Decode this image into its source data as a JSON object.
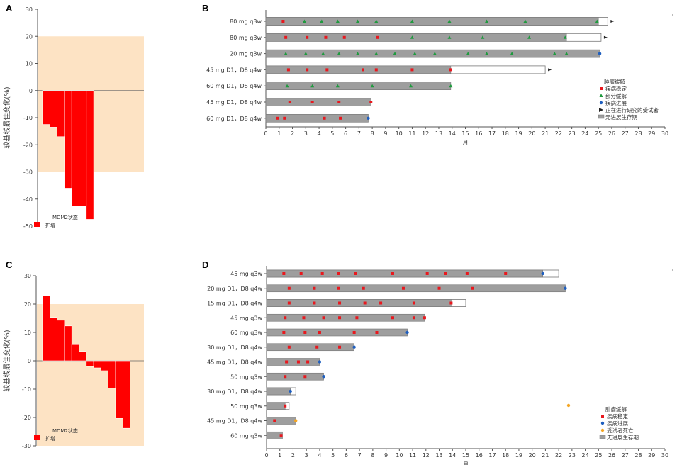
{
  "figure": {
    "panel_labels": [
      "A",
      "B",
      "C",
      "D"
    ]
  },
  "chart_data": [
    {
      "panel": "A",
      "type": "bar",
      "ylabel": "较基线最佳变化(%)",
      "ylim": [
        -50,
        30
      ],
      "yticks": [
        30,
        20,
        10,
        0,
        -10,
        -20,
        -30,
        -40,
        -50
      ],
      "shaded_band": [
        -30,
        20
      ],
      "values": [
        -12.5,
        -13.5,
        -17,
        -36,
        -42.5,
        -42.5,
        -47.5
      ],
      "legend": {
        "title": "MDM2状态",
        "entries": [
          "扩增"
        ]
      },
      "colors": {
        "bar": "#ff0000",
        "band": "#fde3c4"
      }
    },
    {
      "panel": "B",
      "type": "swimmer",
      "xlabel": "月",
      "xlim": [
        0,
        30
      ],
      "xticks": [
        0,
        1,
        2,
        3,
        4,
        5,
        6,
        7,
        8,
        9,
        10,
        11,
        12,
        13,
        14,
        15,
        16,
        17,
        18,
        19,
        20,
        21,
        22,
        23,
        24,
        25,
        26,
        27,
        28,
        29,
        30
      ],
      "rows": [
        {
          "label": "80 mg q3w",
          "pfs": 25,
          "ongoing": 25.7,
          "arrow": true,
          "sd": [
            1.3
          ],
          "pr": [
            2.9,
            4.2,
            5.4,
            6.9,
            8.3,
            11,
            13.8,
            16.6,
            19.5,
            24.9
          ],
          "pd": []
        },
        {
          "label": "80 mg q3w",
          "pfs": 22.6,
          "ongoing": 25.2,
          "arrow": true,
          "sd": [
            1.5,
            3.1,
            4.5,
            5.9,
            8.4
          ],
          "pr": [
            11,
            13.8,
            16.3,
            19.8,
            22.5
          ],
          "pd": []
        },
        {
          "label": "20 mg q3w",
          "pfs": 25.1,
          "ongoing": null,
          "arrow": false,
          "sd": [],
          "pr": [
            1.5,
            3,
            4.3,
            5.5,
            6.9,
            8.3,
            9.7,
            11.2,
            12.7,
            15.2,
            16.6,
            18.5,
            21.7,
            22.6
          ],
          "pd": [
            25.1
          ]
        },
        {
          "label": "45 mg D1，D8 q4w",
          "pfs": 13.9,
          "ongoing": 21,
          "arrow": true,
          "sd": [
            1.7,
            3.1,
            4.6,
            7.3,
            8.3,
            11,
            13.9
          ],
          "pr": [],
          "pd": []
        },
        {
          "label": "60 mg D1，D8 q4w",
          "pfs": 13.9,
          "ongoing": null,
          "arrow": false,
          "sd": [],
          "pr": [
            1.6,
            3.5,
            5.4,
            8,
            10.9,
            13.9
          ],
          "pd": []
        },
        {
          "label": "45 mg D1，D8 q4w",
          "pfs": 7.9,
          "ongoing": null,
          "arrow": false,
          "sd": [
            1.8,
            3.5,
            5.5,
            7.9
          ],
          "pr": [],
          "pd": []
        },
        {
          "label": "60 mg D1，D8 q4w",
          "pfs": 7.7,
          "ongoing": null,
          "arrow": false,
          "sd": [
            0.9,
            1.4,
            4.4,
            5.6
          ],
          "pr": [],
          "pd": [
            7.7
          ]
        }
      ],
      "legend": {
        "title": "肿瘤缓解",
        "entries": [
          "疾病稳定",
          "部分缓解",
          "疾病进展",
          "正在进行研究的受试者",
          "无进展生存期"
        ]
      },
      "colors": {
        "sd": "#e8181e",
        "pr": "#1f9a3e",
        "pd": "#1f5fbf",
        "bar": "#9e9e9e"
      }
    },
    {
      "panel": "C",
      "type": "bar",
      "ylabel": "较基线最佳变化(%)",
      "ylim": [
        -30,
        30
      ],
      "yticks": [
        30,
        20,
        10,
        0,
        -10,
        -20,
        -30
      ],
      "shaded_band": [
        -30,
        20
      ],
      "values": [
        23,
        15.3,
        14.3,
        12.3,
        5.7,
        3.3,
        -2,
        -2.5,
        -3.5,
        -9.7,
        -20.3,
        -23.8
      ],
      "legend": {
        "title": "MDM2状态",
        "entries": [
          "扩增"
        ]
      },
      "colors": {
        "bar": "#ff0000",
        "band": "#fde3c4"
      }
    },
    {
      "panel": "D",
      "type": "swimmer",
      "xlabel": "月",
      "xlim": [
        0,
        30
      ],
      "xticks": [
        0,
        1,
        2,
        3,
        4,
        5,
        6,
        7,
        8,
        9,
        10,
        11,
        12,
        13,
        14,
        15,
        16,
        17,
        18,
        19,
        20,
        21,
        22,
        23,
        24,
        25,
        26,
        27,
        28,
        29,
        30
      ],
      "rows": [
        {
          "label": "45 mg q3w",
          "pfs": 20.8,
          "ongoing": 22,
          "arrow": false,
          "sd": [
            1.3,
            2.6,
            4.2,
            5.4,
            6.7,
            9.5,
            12.1,
            13.5,
            15.1,
            18
          ],
          "pr": [],
          "pd": [
            20.8
          ]
        },
        {
          "label": "20 mg D1，D8 q4w",
          "pfs": 22.5,
          "ongoing": null,
          "arrow": false,
          "sd": [
            1.7,
            3.6,
            5.4,
            7.3,
            10.3,
            13,
            15.5
          ],
          "pr": [],
          "pd": [
            22.5
          ]
        },
        {
          "label": "15 mg D1，D8 q4w",
          "pfs": 13.9,
          "ongoing": 15,
          "arrow": false,
          "sd": [
            1.7,
            3.6,
            5.5,
            7.4,
            8.6,
            11.1,
            13.9
          ],
          "pr": [],
          "pd": []
        },
        {
          "label": "45 mg q3w",
          "pfs": 11.9,
          "ongoing": null,
          "arrow": false,
          "sd": [
            1.4,
            2.8,
            4.3,
            5.5,
            6.8,
            9.5,
            11.1,
            11.9
          ],
          "pr": [],
          "pd": []
        },
        {
          "label": "60 mg q3w",
          "pfs": 10.6,
          "ongoing": null,
          "arrow": false,
          "sd": [
            1.3,
            2.9,
            4,
            6.6,
            8.3
          ],
          "pr": [],
          "pd": [
            10.6
          ]
        },
        {
          "label": "30 mg D1，D8 q4w",
          "pfs": 6.6,
          "ongoing": null,
          "arrow": false,
          "sd": [
            1.7,
            3.8,
            5.5
          ],
          "pr": [],
          "pd": [
            6.6
          ]
        },
        {
          "label": "45 mg D1，D8 q4w",
          "pfs": 4,
          "ongoing": null,
          "arrow": false,
          "sd": [
            1.5,
            2.4,
            3.1
          ],
          "pr": [],
          "pd": [
            4
          ]
        },
        {
          "label": "50 mg q3w",
          "pfs": 4.3,
          "ongoing": null,
          "arrow": false,
          "sd": [
            1.4,
            2.9
          ],
          "pr": [],
          "pd": [
            4.3
          ]
        },
        {
          "label": "30 mg D1，D8 q4w",
          "pfs": 1.8,
          "ongoing": 2.2,
          "arrow": false,
          "sd": [],
          "pr": [],
          "pd": [
            1.8
          ]
        },
        {
          "label": "50 mg q3w",
          "pfs": 1.4,
          "ongoing": 1.7,
          "arrow": false,
          "sd": [
            1.4
          ],
          "pr": [],
          "pd": []
        },
        {
          "label": "45 mg D1，D8 q4w",
          "pfs": 2.2,
          "ongoing": null,
          "arrow": false,
          "sd": [
            0.6
          ],
          "pr": [],
          "pd": [],
          "death": [
            2.2
          ]
        },
        {
          "label": "60 mg q3w",
          "pfs": 1.2,
          "ongoing": null,
          "arrow": false,
          "sd": [
            1.1
          ],
          "pr": [],
          "pd": []
        }
      ],
      "legend": {
        "title": "肿瘤缓解",
        "entries": [
          "疾病稳定",
          "疾病进展",
          "受试者死亡",
          "无进展生存期"
        ]
      },
      "colors": {
        "sd": "#e8181e",
        "pd": "#1f5fbf",
        "death": "#f5a623",
        "bar": "#9e9e9e"
      }
    }
  ]
}
